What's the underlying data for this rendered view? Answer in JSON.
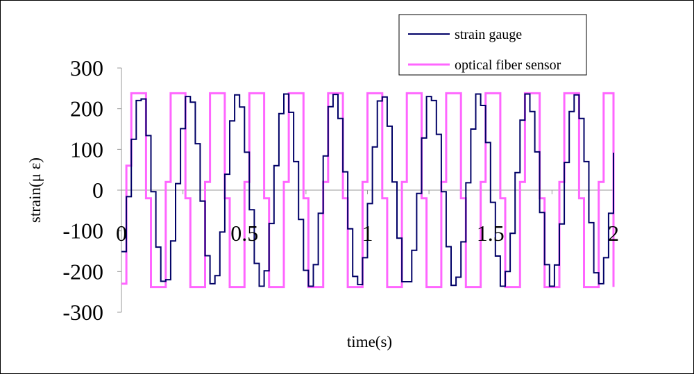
{
  "chart_data": {
    "type": "line",
    "xlabel": "time(s)",
    "ylabel": "strain(μ ε)",
    "xlim": [
      0,
      2
    ],
    "ylim": [
      -300,
      300
    ],
    "x_ticks": [
      "0",
      "0.5",
      "1",
      "1.5",
      "2"
    ],
    "y_ticks": [
      "300",
      "200",
      "100",
      "0",
      "-100",
      "-200",
      "-300"
    ],
    "grid": false,
    "legend_position": "top-right",
    "series": [
      {
        "name": "strain gauge",
        "color": "#000066",
        "x": [
          0.0,
          0.02,
          0.04,
          0.06,
          0.08,
          0.1,
          0.12,
          0.14,
          0.16,
          0.18,
          0.2,
          0.22,
          0.24,
          0.26,
          0.28,
          0.3,
          0.32,
          0.34,
          0.36,
          0.38,
          0.4,
          0.42,
          0.44,
          0.46,
          0.48,
          0.5,
          0.52,
          0.54,
          0.56,
          0.58,
          0.6,
          0.62,
          0.64,
          0.66,
          0.68,
          0.7,
          0.72,
          0.74,
          0.76,
          0.78,
          0.8,
          0.82,
          0.84,
          0.86,
          0.88,
          0.9,
          0.92,
          0.94,
          0.96,
          0.98,
          1.0,
          1.02,
          1.04,
          1.06,
          1.08,
          1.1,
          1.12,
          1.14,
          1.16,
          1.18,
          1.2,
          1.22,
          1.24,
          1.26,
          1.28,
          1.3,
          1.32,
          1.34,
          1.36,
          1.38,
          1.4,
          1.42,
          1.44,
          1.46,
          1.48,
          1.5,
          1.52,
          1.54,
          1.56,
          1.58,
          1.6,
          1.62,
          1.64,
          1.66,
          1.68,
          1.7,
          1.72,
          1.74,
          1.76,
          1.78,
          1.8,
          1.82,
          1.84,
          1.86,
          1.88,
          1.9,
          1.92,
          1.94,
          1.96,
          1.98,
          2.0
        ],
        "y": [
          -151,
          -16,
          125,
          220,
          224,
          134,
          -4,
          -140,
          -224,
          -220,
          -125,
          16,
          151,
          230,
          216,
          114,
          -27,
          -161,
          -230,
          -210,
          -103,
          39,
          170,
          234,
          204,
          93,
          -48,
          -180,
          -236,
          -198,
          -82,
          60,
          188,
          236,
          191,
          70,
          -72,
          -197,
          -236,
          -183,
          -57,
          84,
          205,
          235,
          176,
          45,
          -95,
          -212,
          -232,
          -166,
          -33,
          106,
          219,
          229,
          157,
          20,
          -118,
          -225,
          -225,
          -148,
          -8,
          128,
          230,
          220,
          137,
          -4,
          -139,
          -234,
          -214,
          -127,
          18,
          150,
          236,
          208,
          117,
          -30,
          -162,
          -236,
          -200,
          -106,
          43,
          172,
          236,
          193,
          94,
          -55,
          -183,
          -236,
          -184,
          -83,
          68,
          193,
          234,
          176,
          70,
          -80,
          -203,
          -230,
          -166,
          -57,
          92
        ]
      },
      {
        "name": "optical fiber sensor",
        "color": "#ff66ff",
        "x": [
          0.0,
          0.02,
          0.04,
          0.06,
          0.08,
          0.1,
          0.12,
          0.14,
          0.16,
          0.18,
          0.2,
          0.22,
          0.24,
          0.26,
          0.28,
          0.3,
          0.32,
          0.34,
          0.36,
          0.38,
          0.4,
          0.42,
          0.44,
          0.46,
          0.48,
          0.5,
          0.52,
          0.54,
          0.56,
          0.58,
          0.6,
          0.62,
          0.64,
          0.66,
          0.68,
          0.7,
          0.72,
          0.74,
          0.76,
          0.78,
          0.8,
          0.82,
          0.84,
          0.86,
          0.88,
          0.9,
          0.92,
          0.94,
          0.96,
          0.98,
          1.0,
          1.02,
          1.04,
          1.06,
          1.08,
          1.1,
          1.12,
          1.14,
          1.16,
          1.18,
          1.2,
          1.22,
          1.24,
          1.26,
          1.28,
          1.3,
          1.32,
          1.34,
          1.36,
          1.38,
          1.4,
          1.42,
          1.44,
          1.46,
          1.48,
          1.5,
          1.52,
          1.54,
          1.56,
          1.58,
          1.6,
          1.62,
          1.64,
          1.66,
          1.68,
          1.7,
          1.72,
          1.74,
          1.76,
          1.78,
          1.8,
          1.82,
          1.84,
          1.86,
          1.88,
          1.9,
          1.92,
          1.94,
          1.96,
          1.98,
          2.0
        ],
        "y": [
          -230,
          60,
          238,
          238,
          238,
          -20,
          -238,
          -238,
          -238,
          20,
          238,
          238,
          238,
          -20,
          -238,
          -238,
          -238,
          20,
          238,
          238,
          238,
          -20,
          -238,
          -238,
          -238,
          20,
          238,
          238,
          238,
          -20,
          -238,
          -238,
          -238,
          20,
          238,
          238,
          238,
          -20,
          -238,
          -238,
          -238,
          20,
          238,
          238,
          238,
          -20,
          -238,
          -238,
          -238,
          20,
          238,
          238,
          238,
          -20,
          -238,
          -238,
          -238,
          20,
          238,
          238,
          238,
          -20,
          -238,
          -238,
          -238,
          20,
          238,
          238,
          238,
          -20,
          -238,
          -238,
          -238,
          20,
          238,
          238,
          238,
          -20,
          -238,
          -238,
          -238,
          20,
          238,
          238,
          238,
          -20,
          -238,
          -238,
          -238,
          20,
          238,
          238,
          238,
          -20,
          -238,
          -238,
          -238,
          20,
          238,
          238,
          -238
        ]
      }
    ]
  }
}
